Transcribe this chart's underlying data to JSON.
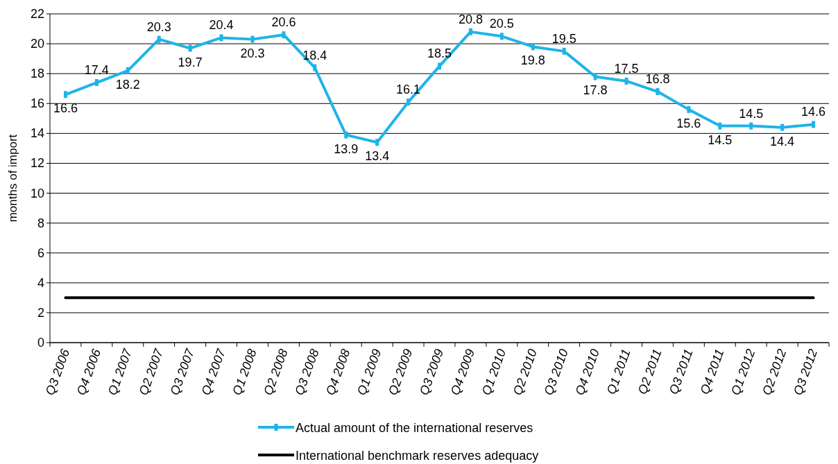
{
  "chart_data": {
    "type": "line",
    "ylabel": "months of import",
    "categories": [
      "Q3 2006",
      "Q4 2006",
      "Q1 2007",
      "Q2 2007",
      "Q3 2007",
      "Q4 2007",
      "Q1 2008",
      "Q2 2008",
      "Q3 2008",
      "Q4 2008",
      "Q1 2009",
      "Q2 2009",
      "Q3 2009",
      "Q4 2009",
      "Q1 2010",
      "Q2 2010",
      "Q3 2010",
      "Q4 2010",
      "Q1 2011",
      "Q2 2011",
      "Q3 2011",
      "Q4 2011",
      "Q1 2012",
      "Q2 2012",
      "Q3 2012"
    ],
    "series": [
      {
        "name": "Actual amount of the international reserves",
        "color": "#1fb4e8",
        "marker": "square",
        "data_labels": true,
        "values": [
          16.6,
          17.4,
          18.2,
          20.3,
          19.7,
          20.4,
          20.3,
          20.6,
          18.4,
          13.9,
          13.4,
          16.1,
          18.5,
          20.8,
          20.5,
          19.8,
          19.5,
          17.8,
          17.5,
          16.8,
          15.6,
          14.5,
          14.5,
          14.4,
          14.6
        ]
      },
      {
        "name": "International benchmark reserves adequacy",
        "color": "#000000",
        "marker": "none",
        "values": [
          3,
          3,
          3,
          3,
          3,
          3,
          3,
          3,
          3,
          3,
          3,
          3,
          3,
          3,
          3,
          3,
          3,
          3,
          3,
          3,
          3,
          3,
          3,
          3,
          3
        ]
      }
    ],
    "ylim": [
      0,
      22
    ],
    "yticks": [
      0,
      2,
      4,
      6,
      8,
      10,
      12,
      14,
      16,
      18,
      20,
      22
    ],
    "grid": "y",
    "legend": "bottom",
    "line_style": "solid"
  }
}
